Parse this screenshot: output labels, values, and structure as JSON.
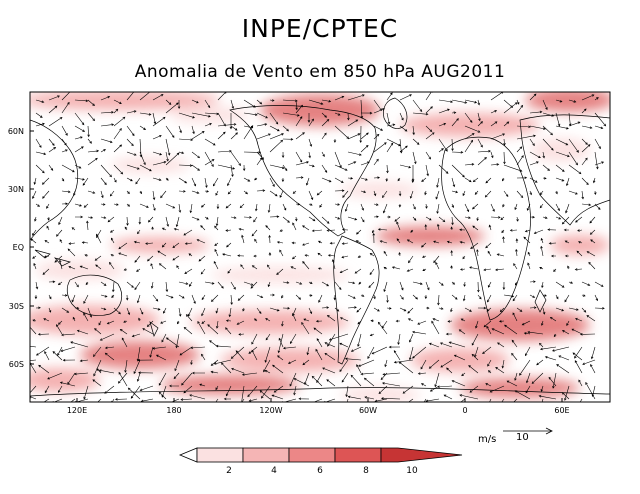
{
  "title": "INPE/CPTEC",
  "subtitle": "Anomalia de Vento em 850 hPa AUG2011",
  "lat_labels": [
    "60N",
    "30N",
    "EQ",
    "30S",
    "60S"
  ],
  "lon_labels": [
    "120E",
    "180",
    "120W",
    "60W",
    "0",
    "60E"
  ],
  "reference_vector": {
    "units": "m/s",
    "value": "10"
  },
  "colorbar": {
    "labels": [
      "2",
      "4",
      "6",
      "8",
      "10"
    ],
    "colors": [
      "#ffffff",
      "#fbe1e1",
      "#f5b5b5",
      "#ec8787",
      "#dd5555",
      "#c63434"
    ]
  },
  "colors": {
    "shade_light": "#fbdede",
    "shade_mid": "#f3a9a9",
    "shade_dark": "#e27575",
    "frame": "#000000"
  }
}
